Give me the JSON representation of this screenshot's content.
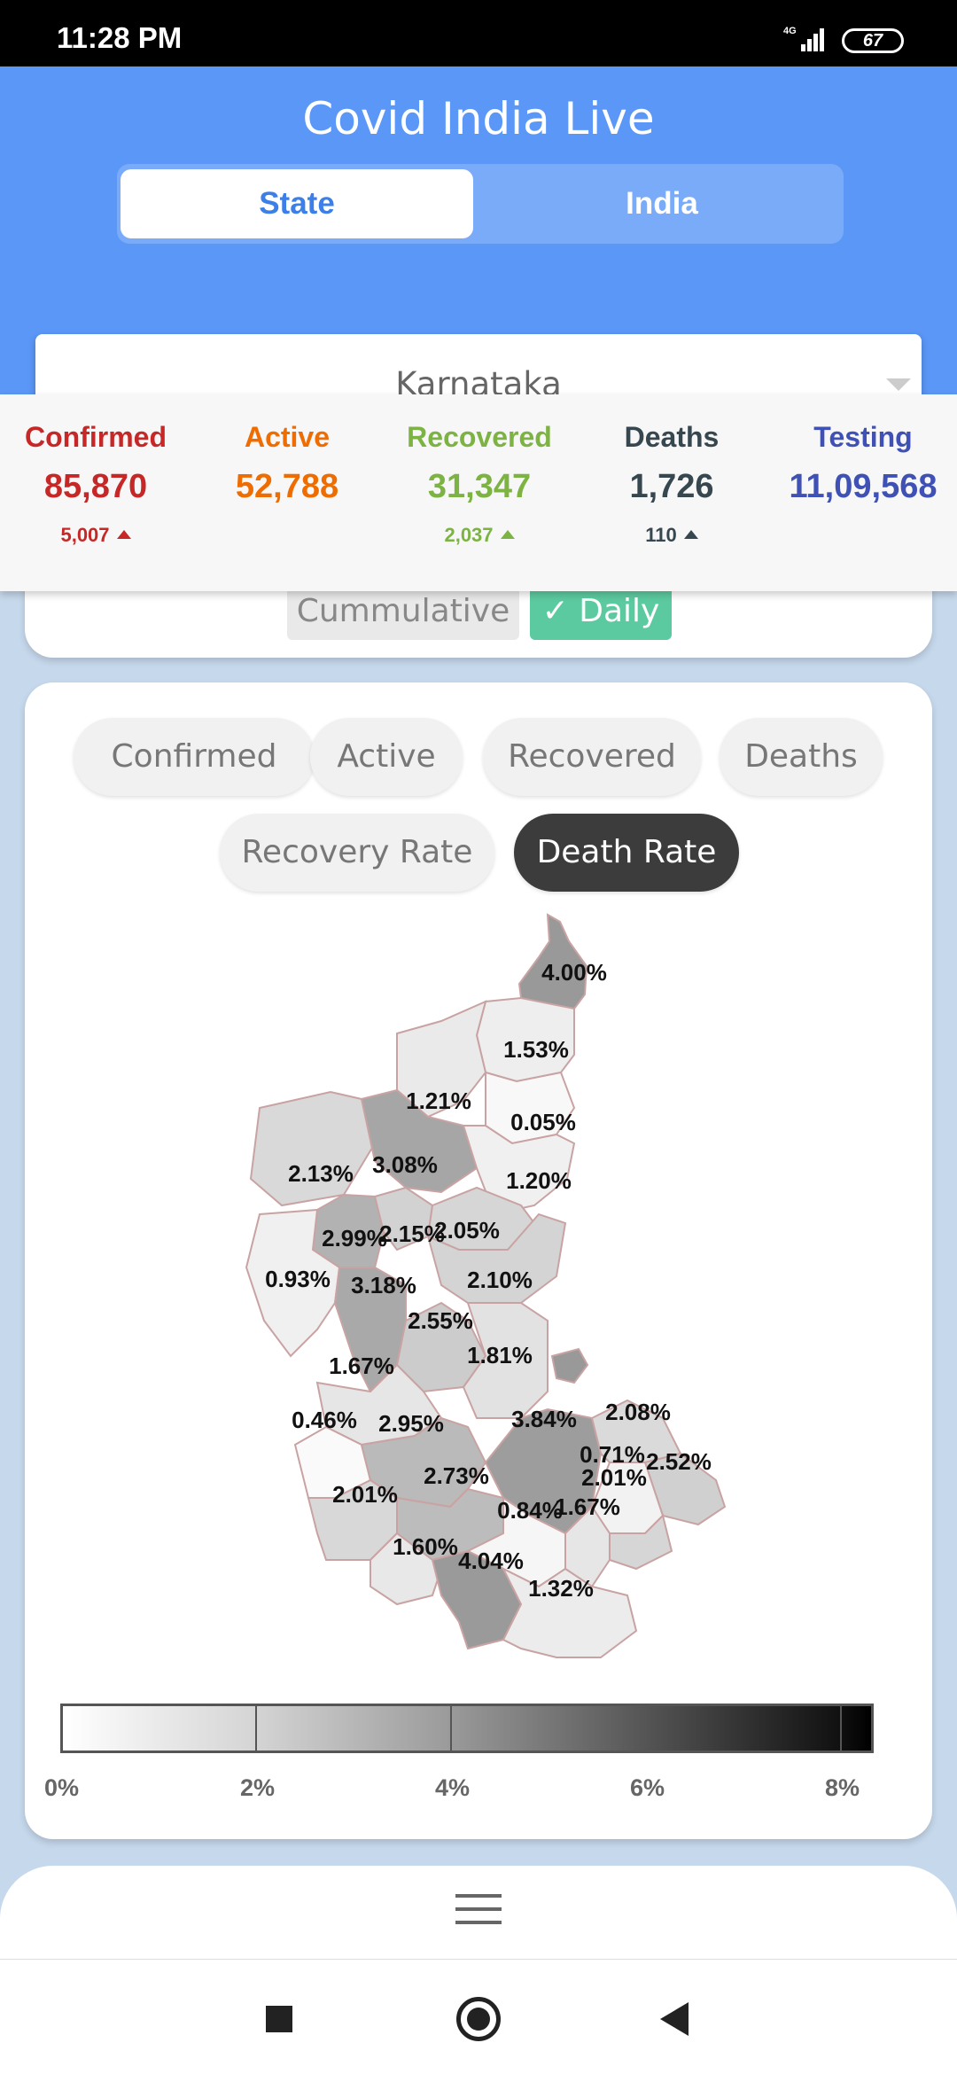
{
  "status_bar": {
    "time": "11:28 PM",
    "network": "4G",
    "battery": "67"
  },
  "app": {
    "title": "Covid India Live"
  },
  "segment": {
    "state": "State",
    "india": "India",
    "selected": "State"
  },
  "dropdown": {
    "value": "Karnataka"
  },
  "stats": [
    {
      "label": "Confirmed",
      "value": "85,870",
      "delta": "5,007",
      "color": "#c62828"
    },
    {
      "label": "Active",
      "value": "52,788",
      "delta": "",
      "color": "#ef6c00"
    },
    {
      "label": "Recovered",
      "value": "31,347",
      "delta": "2,037",
      "color": "#7cb342"
    },
    {
      "label": "Deaths",
      "value": "1,726",
      "delta": "110",
      "color": "#37474f"
    },
    {
      "label": "Testing",
      "value": "11,09,568",
      "delta": "",
      "color": "#3f51b5"
    }
  ],
  "toggle": {
    "cumulative": "Cummulative",
    "daily": "Daily",
    "selected": "Daily"
  },
  "chips": [
    "Confirmed",
    "Active",
    "Recovered",
    "Deaths",
    "Recovery Rate",
    "Death Rate"
  ],
  "selected_chip": "Death Rate",
  "map_labels": [
    "4.00%",
    "1.53%",
    "1.21%",
    "0.05%",
    "2.13%",
    "3.08%",
    "1.20%",
    "2.99%",
    "2.15%",
    "2.05%",
    "2.10%",
    "0.93%",
    "3.18%",
    "2.55%",
    "1.81%",
    "1.67%",
    "0.46%",
    "2.95%",
    "3.84%",
    "2.08%",
    "0.71%",
    "2.52%",
    "2.01%",
    "2.73%",
    "2.01%",
    "0.84%",
    "1.67%",
    "1.60%",
    "4.04%",
    "1.32%"
  ],
  "legend": {
    "labels": [
      "0%",
      "2%",
      "4%",
      "6%",
      "8%"
    ]
  }
}
